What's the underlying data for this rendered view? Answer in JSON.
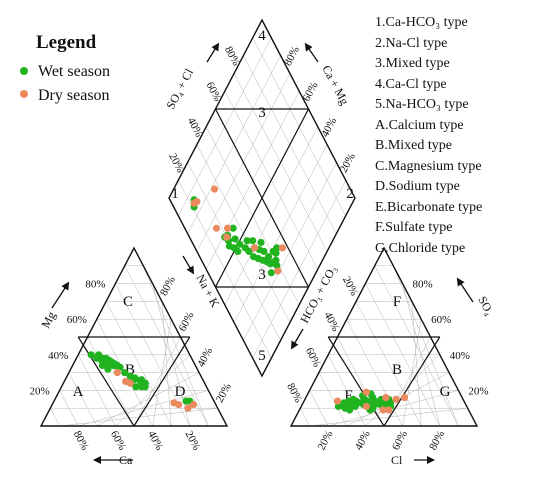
{
  "legend": {
    "title": "Legend",
    "items": [
      {
        "label": "Wet season",
        "color": "#21b31f"
      },
      {
        "label": "Dry season",
        "color": "#eb8a5e"
      }
    ]
  },
  "type_key": [
    {
      "id": "1",
      "text": "1.Ca-HCO₃ type"
    },
    {
      "id": "2",
      "text": "2.Na-Cl type"
    },
    {
      "id": "3",
      "text": "3.Mixed type"
    },
    {
      "id": "4",
      "text": "4.Ca-Cl type"
    },
    {
      "id": "5",
      "text": "5.Na-HCO₃ type"
    },
    {
      "id": "A",
      "text": "A.Calcium type"
    },
    {
      "id": "B",
      "text": "B.Mixed type"
    },
    {
      "id": "C",
      "text": "C.Magnesium type"
    },
    {
      "id": "D",
      "text": "D.Sodium type"
    },
    {
      "id": "E",
      "text": "E.Bicarbonate type"
    },
    {
      "id": "F",
      "text": "F.Sulfate type"
    },
    {
      "id": "G",
      "text": "G.Chloride type"
    }
  ],
  "axes": {
    "ca": "Ca",
    "mg": "Mg",
    "na_k": "Na + K",
    "cl": "Cl",
    "so4": "SO₄",
    "hco3_co3": "HCO₃ + CO₃",
    "so4_cl": "SO₄ + Cl",
    "ca_mg": "Ca + Mg"
  },
  "ticks": [
    "20%",
    "40%",
    "60%",
    "80%"
  ],
  "regions": {
    "diamond": [
      "4",
      "3",
      "1",
      "2",
      "3",
      "5"
    ],
    "cation": [
      "C",
      "A",
      "B",
      "D"
    ],
    "anion": [
      "F",
      "B",
      "E",
      "G"
    ]
  },
  "chart_data": {
    "type": "scatter",
    "diagram": "piper",
    "units": "percent of meq/L",
    "series": [
      {
        "name": "Wet season",
        "color": "#21b31f",
        "cation": [
          {
            "ca": 53,
            "mg": 40
          },
          {
            "ca": 51,
            "mg": 38
          },
          {
            "ca": 49,
            "mg": 37
          },
          {
            "ca": 48,
            "mg": 37
          },
          {
            "ca": 47,
            "mg": 37
          },
          {
            "ca": 46,
            "mg": 36
          },
          {
            "ca": 46,
            "mg": 35
          },
          {
            "ca": 45,
            "mg": 35
          },
          {
            "ca": 44,
            "mg": 36
          },
          {
            "ca": 44,
            "mg": 34
          },
          {
            "ca": 43,
            "mg": 34
          },
          {
            "ca": 42,
            "mg": 33
          },
          {
            "ca": 41,
            "mg": 33
          },
          {
            "ca": 50,
            "mg": 34
          },
          {
            "ca": 48,
            "mg": 32
          },
          {
            "ca": 47,
            "mg": 36
          },
          {
            "ca": 45,
            "mg": 37
          },
          {
            "ca": 46,
            "mg": 38
          },
          {
            "ca": 48,
            "mg": 38
          },
          {
            "ca": 49,
            "mg": 40
          },
          {
            "ca": 43,
            "mg": 35
          },
          {
            "ca": 42,
            "mg": 34
          },
          {
            "ca": 40,
            "mg": 30
          },
          {
            "ca": 38,
            "mg": 28
          },
          {
            "ca": 36,
            "mg": 27
          },
          {
            "ca": 34,
            "mg": 25
          },
          {
            "ca": 37,
            "mg": 26
          },
          {
            "ca": 33,
            "mg": 26
          },
          {
            "ca": 32,
            "mg": 24
          },
          {
            "ca": 34,
            "mg": 23
          },
          {
            "ca": 33,
            "mg": 22
          },
          {
            "ca": 35,
            "mg": 22
          },
          {
            "ca": 38,
            "mg": 22
          },
          {
            "ca": 32,
            "mg": 24
          },
          {
            "ca": 13,
            "mg": 14
          },
          {
            "ca": 15,
            "mg": 14
          }
        ],
        "anion": [
          {
            "cl": 22,
            "so4": 13
          },
          {
            "cl": 24,
            "so4": 14
          },
          {
            "cl": 26,
            "so4": 15
          },
          {
            "cl": 28,
            "so4": 14
          },
          {
            "cl": 30,
            "so4": 13
          },
          {
            "cl": 32,
            "so4": 15
          },
          {
            "cl": 34,
            "so4": 14
          },
          {
            "cl": 36,
            "so4": 13
          },
          {
            "cl": 38,
            "so4": 14
          },
          {
            "cl": 40,
            "so4": 13
          },
          {
            "cl": 42,
            "so4": 12
          },
          {
            "cl": 44,
            "so4": 13
          },
          {
            "cl": 26,
            "so4": 12
          },
          {
            "cl": 29,
            "so4": 11
          },
          {
            "cl": 33,
            "so4": 12
          },
          {
            "cl": 36,
            "so4": 11
          },
          {
            "cl": 39,
            "so4": 12
          },
          {
            "cl": 41,
            "so4": 15
          },
          {
            "cl": 45,
            "so4": 15
          },
          {
            "cl": 34,
            "so4": 18
          },
          {
            "cl": 30,
            "so4": 17
          },
          {
            "cl": 24,
            "so4": 10
          },
          {
            "cl": 20,
            "so4": 11
          },
          {
            "cl": 31,
            "so4": 16
          },
          {
            "cl": 27,
            "so4": 9
          },
          {
            "cl": 36,
            "so4": 16
          },
          {
            "cl": 44,
            "so4": 11
          },
          {
            "cl": 47,
            "so4": 13
          },
          {
            "cl": 48,
            "so4": 11
          },
          {
            "cl": 46,
            "so4": 12
          },
          {
            "cl": 37,
            "so4": 11
          },
          {
            "cl": 38,
            "so4": 9
          },
          {
            "cl": 39,
            "so4": 10
          },
          {
            "cl": 42,
            "so4": 13
          }
        ],
        "diamond": [
          {
            "so4cl": 36,
            "camg": 73
          },
          {
            "so4cl": 38,
            "camg": 74
          },
          {
            "so4cl": 40,
            "camg": 75
          },
          {
            "so4cl": 42,
            "camg": 73
          },
          {
            "so4cl": 35,
            "camg": 71
          },
          {
            "so4cl": 37,
            "camg": 70
          },
          {
            "so4cl": 41,
            "camg": 71
          },
          {
            "so4cl": 44,
            "camg": 72
          },
          {
            "so4cl": 34,
            "camg": 76
          },
          {
            "so4cl": 39,
            "camg": 77
          },
          {
            "so4cl": 33,
            "camg": 68
          },
          {
            "so4cl": 36,
            "camg": 66
          },
          {
            "so4cl": 31,
            "camg": 65
          },
          {
            "so4cl": 34,
            "camg": 63
          },
          {
            "so4cl": 29,
            "camg": 62
          },
          {
            "so4cl": 32,
            "camg": 60
          },
          {
            "so4cl": 28,
            "camg": 58
          },
          {
            "so4cl": 33,
            "camg": 57
          },
          {
            "so4cl": 37,
            "camg": 62
          },
          {
            "so4cl": 27,
            "camg": 55
          },
          {
            "so4cl": 30,
            "camg": 54
          },
          {
            "so4cl": 25,
            "camg": 51
          },
          {
            "so4cl": 22,
            "camg": 52
          },
          {
            "so4cl": 21,
            "camg": 49
          },
          {
            "so4cl": 19,
            "camg": 46
          },
          {
            "so4cl": 24,
            "camg": 47
          },
          {
            "so4cl": 21,
            "camg": 42
          },
          {
            "so4cl": 26,
            "camg": 43
          },
          {
            "so4cl": 19,
            "camg": 41
          },
          {
            "so4cl": 20,
            "camg": 44
          },
          {
            "so4cl": 11,
            "camg": 16
          },
          {
            "so4cl": 13,
            "camg": 14
          }
        ]
      },
      {
        "name": "Dry season",
        "color": "#eb8a5e",
        "cation": [
          {
            "ca": 44,
            "mg": 30
          },
          {
            "ca": 42,
            "mg": 25
          },
          {
            "ca": 40,
            "mg": 24
          },
          {
            "ca": 22,
            "mg": 13
          },
          {
            "ca": 20,
            "mg": 12
          },
          {
            "ca": 16,
            "mg": 10
          },
          {
            "ca": 12,
            "mg": 12
          }
        ],
        "anion": [
          {
            "cl": 18,
            "so4": 14
          },
          {
            "cl": 31,
            "so4": 19
          },
          {
            "cl": 35,
            "so4": 11
          },
          {
            "cl": 43,
            "so4": 16
          },
          {
            "cl": 45,
            "so4": 9
          },
          {
            "cl": 48,
            "so4": 9
          },
          {
            "cl": 49,
            "so4": 15
          },
          {
            "cl": 53,
            "so4": 16
          }
        ],
        "diamond": [
          {
            "so4cl": 47,
            "camg": 75
          },
          {
            "so4cl": 38,
            "camg": 79
          },
          {
            "so4cl": 32,
            "camg": 60
          },
          {
            "so4cl": 20,
            "camg": 42
          },
          {
            "so4cl": 23,
            "camg": 40
          },
          {
            "so4cl": 17,
            "camg": 34
          },
          {
            "so4cl": 27,
            "camg": 22
          },
          {
            "so4cl": 12,
            "camg": 15
          },
          {
            "so4cl": 14,
            "camg": 16
          }
        ]
      }
    ]
  }
}
